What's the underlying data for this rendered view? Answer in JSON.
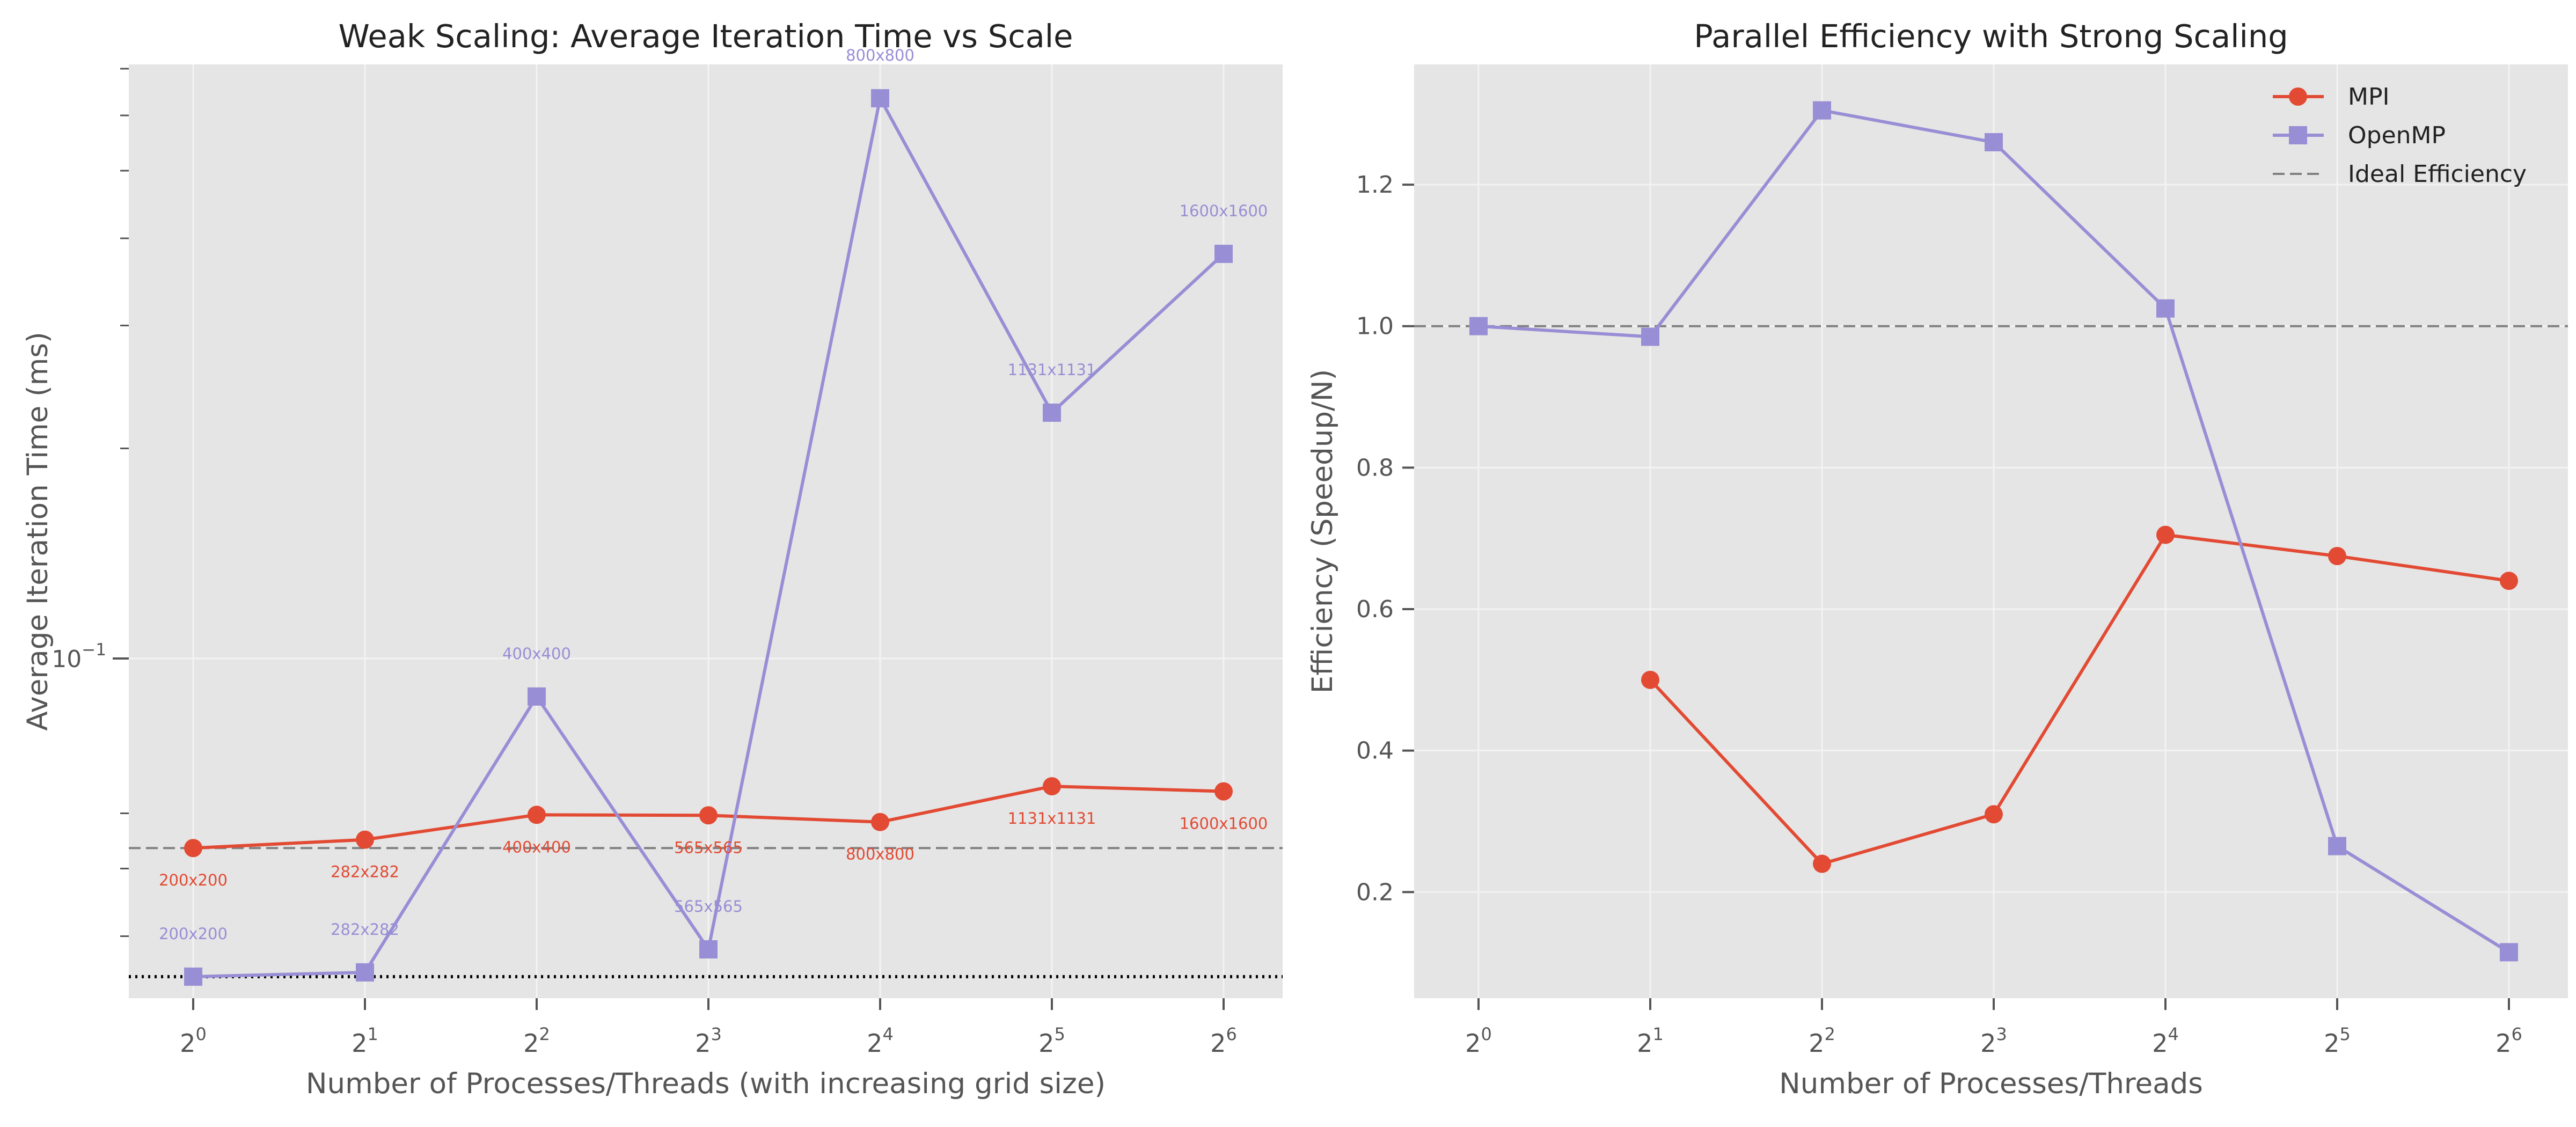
{
  "chart_data": [
    {
      "type": "line",
      "title": "Weak Scaling: Average Iteration Time vs Scale",
      "xlabel": "Number of Processes/Threads (with increasing grid size)",
      "ylabel": "Average Iteration Time (ms)",
      "xscale": "log2",
      "yscale": "log10",
      "x": [
        1,
        2,
        4,
        8,
        16,
        32,
        64
      ],
      "x_tick_labels": [
        {
          "base": "2",
          "exp": "0"
        },
        {
          "base": "2",
          "exp": "1"
        },
        {
          "base": "2",
          "exp": "2"
        },
        {
          "base": "2",
          "exp": "3"
        },
        {
          "base": "2",
          "exp": "4"
        },
        {
          "base": "2",
          "exp": "5"
        },
        {
          "base": "2",
          "exp": "6"
        }
      ],
      "y_major_tick": {
        "value": 0.1,
        "base": "10",
        "exp": "−1"
      },
      "ylim": [
        0.0326,
        0.71
      ],
      "grid": true,
      "series": [
        {
          "name": "MPI",
          "color": "#e24a33",
          "marker": "circle",
          "values": [
            0.0535,
            0.055,
            0.0597,
            0.0596,
            0.0583,
            0.0656,
            0.0645
          ],
          "point_labels": [
            "200x200",
            "282x282",
            "400x400",
            "565x565",
            "800x800",
            "1131x1131",
            "1600x1600"
          ]
        },
        {
          "name": "OpenMP",
          "color": "#988ed5",
          "marker": "square",
          "values": [
            0.035,
            0.0355,
            0.0882,
            0.0383,
            0.635,
            0.225,
            0.38
          ],
          "point_labels": [
            "200x200",
            "282x282",
            "400x400",
            "565x565",
            "800x800",
            "1131x1131",
            "1600x1600"
          ]
        }
      ],
      "reference_lines": [
        {
          "value": 0.0535,
          "style": "dashed",
          "color": "#808080"
        },
        {
          "value": 0.035,
          "style": "dotted",
          "color": "#000000"
        }
      ]
    },
    {
      "type": "line",
      "title": "Parallel Efficiency with Strong Scaling",
      "xlabel": "Number of Processes/Threads",
      "ylabel": "Efficiency (Speedup/N)",
      "xscale": "log2",
      "x": [
        1,
        2,
        4,
        8,
        16,
        32,
        64
      ],
      "x_tick_labels": [
        {
          "base": "2",
          "exp": "0"
        },
        {
          "base": "2",
          "exp": "1"
        },
        {
          "base": "2",
          "exp": "2"
        },
        {
          "base": "2",
          "exp": "3"
        },
        {
          "base": "2",
          "exp": "4"
        },
        {
          "base": "2",
          "exp": "5"
        },
        {
          "base": "2",
          "exp": "6"
        }
      ],
      "y_ticks": [
        "0.2",
        "0.4",
        "0.6",
        "0.8",
        "1.0",
        "1.2"
      ],
      "ylim": [
        0.05,
        1.37
      ],
      "grid": true,
      "legend_position": "top-right",
      "series": [
        {
          "name": "MPI",
          "color": "#e24a33",
          "marker": "circle",
          "values": [
            null,
            0.5,
            0.24,
            0.31,
            0.705,
            0.675,
            0.64
          ]
        },
        {
          "name": "OpenMP",
          "color": "#988ed5",
          "marker": "square",
          "values": [
            1.0,
            0.985,
            1.305,
            1.26,
            1.025,
            0.265,
            0.115
          ]
        }
      ],
      "reference_lines": [
        {
          "name": "Ideal Efficiency",
          "value": 1.0,
          "style": "dashed",
          "color": "#808080"
        }
      ]
    }
  ]
}
